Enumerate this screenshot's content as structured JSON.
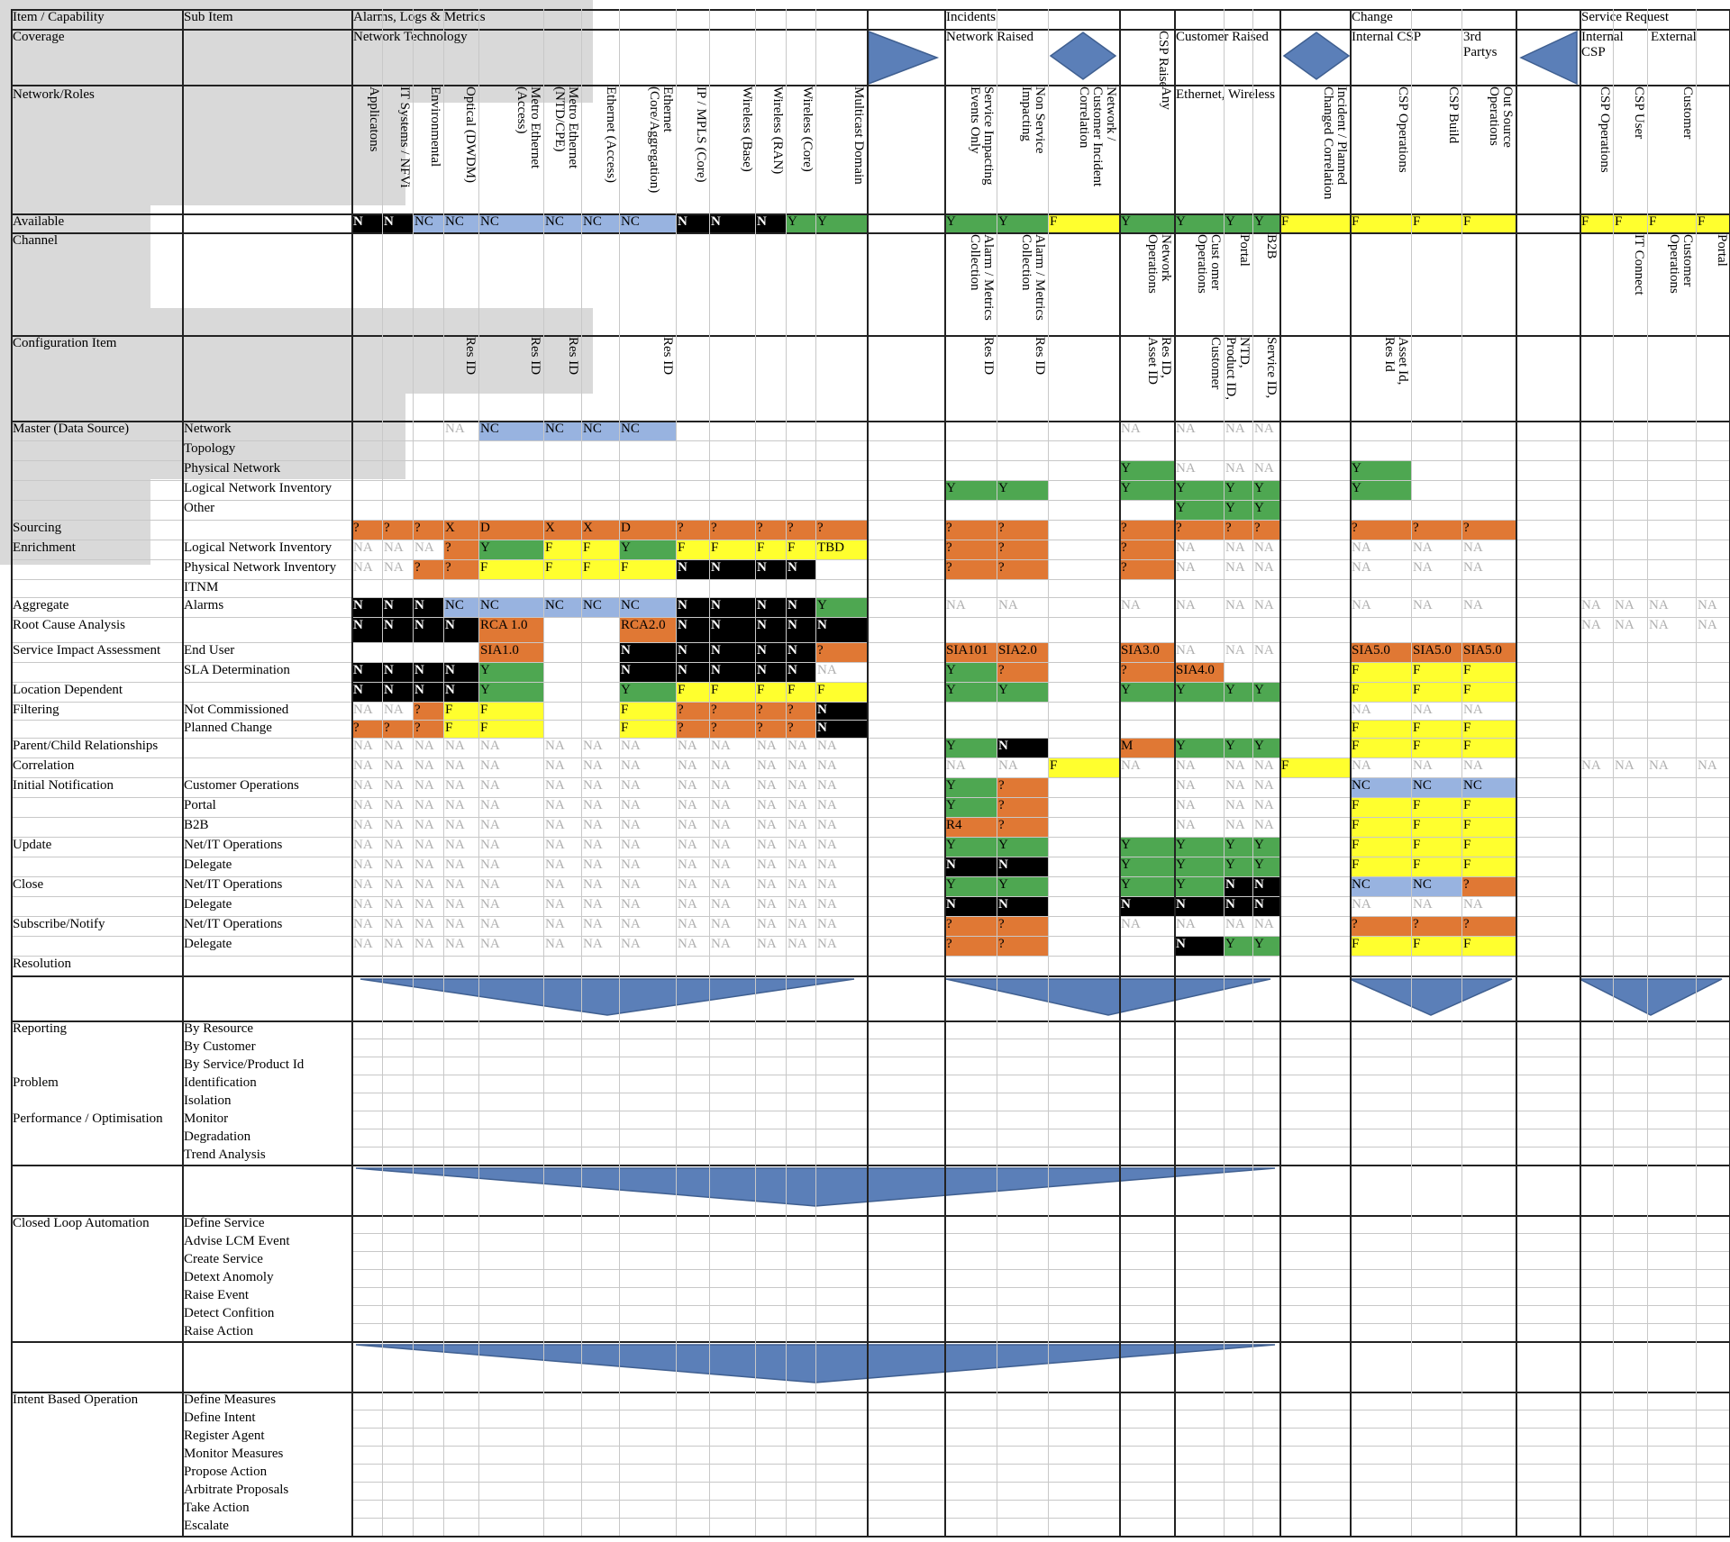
{
  "colors": {
    "Y": "#4ea751",
    "N": "#000000",
    "NC": "#98b3e0",
    "F": "#ffff2e",
    "O": "#e07834",
    "G": "#d9d9d9",
    "arrow": "#5b7fb8"
  },
  "header": {
    "item_capability": "Item / Capability",
    "sub_item": "Sub Item",
    "alarms": "Alarms, Logs & Metrics",
    "incidents": "Incidents",
    "change": "Change",
    "service_request": "Service Request",
    "coverage": "Coverage",
    "network_technology": "Network Technology",
    "network_raised": "Network Raised",
    "csp_raised": "CSP Raised",
    "customer_raised": "Customer Raised",
    "internal_csp": "Internal CSP",
    "third_partys": "3rd Partys",
    "sr_internal_csp": "Internal CSP",
    "external": "External",
    "network_roles": "Network/Roles",
    "ethernet_wireless": "Ethernet, Wireless"
  },
  "columns": [
    "Applicatons",
    "IT Systems / NFVi",
    "Environmental",
    "Optical (DWDM)",
    "Metro Ethernet\n(Access)",
    "Metro Ethernet\n(NTD/CPE)",
    "Ethernet (Access)",
    "Ethernet\n(Core/Aggregation)",
    "IP / MPLS (Core)",
    "Wireless (Base)",
    "Wireless (RAN)",
    "Wireless (Core)",
    "Multicast Domain",
    "",
    "Service Impacting\nEvents Only",
    "Non Service\nImpacting",
    "Network /\nCustomer Incident\nCorrelation",
    "Any",
    "",
    "",
    "",
    "Incident / Planned\nChanged Correlation",
    "CSP Operations",
    "CSP Build",
    "Out Source\nOperations",
    "",
    "CSP Operations",
    "CSP User",
    "Customer",
    ""
  ],
  "channel_labels": [
    "",
    "",
    "",
    "",
    "",
    "",
    "",
    "",
    "",
    "",
    "",
    "",
    "",
    "",
    "Alarm / Metrics\nCollection",
    "Alarm / Metrics\nCollection",
    "",
    "Network\nOperations",
    "Cust omer\nOperations",
    "Portal",
    "B2B",
    "",
    "",
    "",
    "",
    "",
    "",
    "IT Connect",
    "Customer\nOperations",
    "Portal"
  ],
  "ci_labels": [
    "",
    "",
    "",
    "Res ID",
    "Res ID",
    "Res ID",
    "",
    "Res ID",
    "",
    "",
    "",
    "",
    "",
    "",
    "Res ID",
    "Res ID",
    "",
    "Res ID,\nAsset ID",
    "Customer",
    "NTD,\nProduct ID,",
    "Service ID,",
    "",
    "Asset Id,\nRes Id",
    "",
    "",
    "",
    "",
    "",
    "",
    ""
  ],
  "rows": [
    {
      "item": "Available",
      "sub": "",
      "cells": [
        "N",
        "N",
        "NC",
        "NC",
        "NC",
        "NC",
        "NC",
        "NC",
        "N",
        "N",
        "N",
        "Y",
        "Y",
        "",
        "Y",
        "Y",
        "F",
        "Y",
        "Y",
        "Y",
        "Y",
        "F",
        "F",
        "F",
        "F",
        "",
        "F",
        "F",
        "F",
        "F"
      ]
    },
    {
      "item": "Master (Data Source)",
      "sub": "Network",
      "cells": [
        "",
        "",
        "",
        "NA",
        "NC",
        "NC",
        "NC",
        "NC",
        "",
        "",
        "",
        "",
        "",
        "",
        "",
        "",
        "",
        "NA",
        "NA",
        "NA",
        "NA",
        "",
        "",
        "",
        "",
        "",
        "",
        "",
        "",
        ""
      ]
    },
    {
      "item": "",
      "sub": "Topology",
      "cells": [
        "",
        "",
        "",
        "",
        "",
        "",
        "",
        "",
        "",
        "",
        "",
        "",
        "",
        "",
        "",
        "",
        "",
        "",
        "",
        "",
        "",
        "",
        "",
        "",
        "",
        "",
        "",
        "",
        "",
        ""
      ]
    },
    {
      "item": "",
      "sub": "Physical Network",
      "cells": [
        "",
        "",
        "",
        "",
        "",
        "",
        "",
        "",
        "",
        "",
        "",
        "",
        "",
        "",
        "",
        "",
        "",
        "Y",
        "NA",
        "NA",
        "NA",
        "",
        "Y",
        "",
        "",
        "",
        "",
        "",
        "",
        ""
      ]
    },
    {
      "item": "",
      "sub": "Logical Network Inventory",
      "cells": [
        "",
        "",
        "",
        "",
        "",
        "",
        "",
        "",
        "",
        "",
        "",
        "",
        "",
        "",
        "Y",
        "Y",
        "",
        "Y",
        "Y",
        "Y",
        "Y",
        "",
        "Y",
        "",
        "",
        "",
        "",
        "",
        "",
        ""
      ]
    },
    {
      "item": "",
      "sub": "Other",
      "cells": [
        "",
        "",
        "",
        "",
        "",
        "",
        "",
        "",
        "",
        "",
        "",
        "",
        "",
        "",
        "",
        "",
        "",
        "",
        "Y",
        "Y",
        "Y",
        "",
        "",
        "",
        "",
        "",
        "",
        "",
        "",
        ""
      ]
    },
    {
      "item": "Sourcing",
      "sub": "",
      "cells": [
        "?",
        "?",
        "?",
        "X",
        "D",
        "X",
        "X",
        "D",
        "?",
        "?",
        "?",
        "?",
        "?",
        "",
        "?",
        "?",
        "",
        "?",
        "?",
        "?",
        "?",
        "",
        "?",
        "?",
        "?",
        "",
        "",
        "",
        "",
        ""
      ]
    },
    {
      "item": "Enrichment",
      "sub": "Logical Network Inventory",
      "cells": [
        "NA",
        "NA",
        "NA",
        "?",
        "Y",
        "F",
        "F",
        "Y",
        "F",
        "F",
        "F",
        "F",
        "TBD",
        "",
        "?",
        "?",
        "",
        "?",
        "NA",
        "NA",
        "NA",
        "",
        "NA",
        "NA",
        "NA",
        "",
        "",
        "",
        "",
        ""
      ]
    },
    {
      "item": "",
      "sub": "Physical Network Inventory",
      "cells": [
        "NA",
        "NA",
        "?",
        "?",
        "F",
        "F",
        "F",
        "F",
        "N",
        "N",
        "N",
        "N",
        "",
        "",
        "?",
        "?",
        "",
        "?",
        "NA",
        "NA",
        "NA",
        "",
        "NA",
        "NA",
        "NA",
        "",
        "",
        "",
        "",
        ""
      ]
    },
    {
      "item": "",
      "sub": "ITNM",
      "cells": [
        "",
        "",
        "",
        "",
        "",
        "",
        "",
        "",
        "",
        "",
        "",
        "",
        "",
        "",
        "",
        "",
        "",
        "",
        "",
        "",
        "",
        "",
        "",
        "",
        "",
        "",
        "",
        "",
        "",
        ""
      ]
    },
    {
      "item": "Aggregate",
      "sub": "Alarms",
      "cells": [
        "N",
        "N",
        "N",
        "NC",
        "NC",
        "NC",
        "NC",
        "NC",
        "N",
        "N",
        "N",
        "N",
        "Y",
        "",
        "NA",
        "NA",
        "",
        "NA",
        "NA",
        "NA",
        "NA",
        "",
        "NA",
        "NA",
        "NA",
        "",
        "NA",
        "NA",
        "NA",
        "NA"
      ]
    },
    {
      "item": "Root Cause Analysis",
      "sub": "",
      "cells": [
        "N",
        "N",
        "N",
        "N",
        "RCA 1.0",
        "",
        "",
        "RCA2.0",
        "N",
        "N",
        "N",
        "N",
        "N",
        "",
        "",
        "",
        "",
        "",
        "",
        "",
        "",
        "",
        "",
        "",
        "",
        "",
        "NA",
        "NA",
        "NA",
        "NA"
      ]
    },
    {
      "item": "Service Impact Assessment",
      "sub": "End User",
      "cells": [
        "",
        "",
        "",
        "",
        "SIA1.0",
        "",
        "",
        "N",
        "N",
        "N",
        "N",
        "N",
        "?",
        "",
        "SIA101",
        "SIA2.0",
        "",
        "SIA3.0",
        "NA",
        "NA",
        "NA",
        "",
        "SIA5.0",
        "SIA5.0",
        "SIA5.0",
        "",
        "",
        "",
        "",
        ""
      ]
    },
    {
      "item": "",
      "sub": "SLA Determination",
      "cells": [
        "N",
        "N",
        "N",
        "N",
        "Y",
        "",
        "",
        "N",
        "N",
        "N",
        "N",
        "N",
        "NA",
        "",
        "Y",
        "?",
        "",
        "?",
        "SIA4.0",
        "",
        "",
        "",
        "F",
        "F",
        "F",
        "",
        "",
        "",
        "",
        ""
      ]
    },
    {
      "item": "Location Dependent",
      "sub": "",
      "cells": [
        "N",
        "N",
        "N",
        "N",
        "Y",
        "",
        "",
        "Y",
        "F",
        "F",
        "F",
        "F",
        "F",
        "",
        "Y",
        "Y",
        "",
        "Y",
        "Y",
        "Y",
        "Y",
        "",
        "F",
        "F",
        "F",
        "",
        "",
        "",
        "",
        ""
      ]
    },
    {
      "item": "Filtering",
      "sub": "Not Commissioned",
      "cells": [
        "NA",
        "NA",
        "?",
        "F",
        "F",
        "",
        "",
        "F",
        "?",
        "?",
        "?",
        "?",
        "N",
        "",
        "",
        "",
        "",
        "",
        "",
        "",
        "",
        "",
        "NA",
        "NA",
        "NA",
        "",
        "",
        "",
        "",
        ""
      ]
    },
    {
      "item": "",
      "sub": "Planned Change",
      "cells": [
        "?",
        "?",
        "?",
        "F",
        "F",
        "",
        "",
        "F",
        "?",
        "?",
        "?",
        "?",
        "N",
        "",
        "",
        "",
        "",
        "",
        "",
        "",
        "",
        "",
        "F",
        "F",
        "F",
        "",
        "",
        "",
        "",
        ""
      ]
    },
    {
      "item": "Parent/Child Relationships",
      "sub": "",
      "cells": [
        "NA",
        "NA",
        "NA",
        "NA",
        "NA",
        "NA",
        "NA",
        "NA",
        "NA",
        "NA",
        "NA",
        "NA",
        "NA",
        "",
        "Y",
        "N",
        "",
        "M",
        "Y",
        "Y",
        "Y",
        "",
        "F",
        "F",
        "F",
        "",
        "",
        "",
        "",
        ""
      ]
    },
    {
      "item": "Correlation",
      "sub": "",
      "cells": [
        "NA",
        "NA",
        "NA",
        "NA",
        "NA",
        "NA",
        "NA",
        "NA",
        "NA",
        "NA",
        "NA",
        "NA",
        "NA",
        "",
        "NA",
        "NA",
        "F",
        "NA",
        "NA",
        "NA",
        "NA",
        "F",
        "NA",
        "NA",
        "NA",
        "",
        "NA",
        "NA",
        "NA",
        "NA"
      ]
    },
    {
      "item": "Initial Notification",
      "sub": "Customer Operations",
      "cells": [
        "NA",
        "NA",
        "NA",
        "NA",
        "NA",
        "NA",
        "NA",
        "NA",
        "NA",
        "NA",
        "NA",
        "NA",
        "NA",
        "",
        "Y",
        "?",
        "",
        "",
        "NA",
        "NA",
        "NA",
        "",
        "NC",
        "NC",
        "NC",
        "",
        "",
        "",
        "",
        ""
      ]
    },
    {
      "item": "",
      "sub": "Portal",
      "cells": [
        "NA",
        "NA",
        "NA",
        "NA",
        "NA",
        "NA",
        "NA",
        "NA",
        "NA",
        "NA",
        "NA",
        "NA",
        "NA",
        "",
        "Y",
        "?",
        "",
        "",
        "NA",
        "NA",
        "NA",
        "",
        "F",
        "F",
        "F",
        "",
        "",
        "",
        "",
        ""
      ]
    },
    {
      "item": "",
      "sub": "B2B",
      "cells": [
        "NA",
        "NA",
        "NA",
        "NA",
        "NA",
        "NA",
        "NA",
        "NA",
        "NA",
        "NA",
        "NA",
        "NA",
        "NA",
        "",
        "R4",
        "?",
        "",
        "",
        "NA",
        "NA",
        "NA",
        "",
        "F",
        "F",
        "F",
        "",
        "",
        "",
        "",
        ""
      ]
    },
    {
      "item": "Update",
      "sub": "Net/IT Operations",
      "cells": [
        "NA",
        "NA",
        "NA",
        "NA",
        "NA",
        "NA",
        "NA",
        "NA",
        "NA",
        "NA",
        "NA",
        "NA",
        "NA",
        "",
        "Y",
        "Y",
        "",
        "Y",
        "Y",
        "Y",
        "Y",
        "",
        "F",
        "F",
        "F",
        "",
        "",
        "",
        "",
        ""
      ]
    },
    {
      "item": "",
      "sub": "Delegate",
      "cells": [
        "NA",
        "NA",
        "NA",
        "NA",
        "NA",
        "NA",
        "NA",
        "NA",
        "NA",
        "NA",
        "NA",
        "NA",
        "NA",
        "",
        "N",
        "N",
        "",
        "Y",
        "Y",
        "Y",
        "Y",
        "",
        "F",
        "F",
        "F",
        "",
        "",
        "",
        "",
        ""
      ]
    },
    {
      "item": "Close",
      "sub": "Net/IT Operations",
      "cells": [
        "NA",
        "NA",
        "NA",
        "NA",
        "NA",
        "NA",
        "NA",
        "NA",
        "NA",
        "NA",
        "NA",
        "NA",
        "NA",
        "",
        "Y",
        "Y",
        "",
        "Y",
        "Y",
        "N",
        "N",
        "",
        "NC",
        "NC",
        "?",
        "",
        "",
        "",
        "",
        ""
      ]
    },
    {
      "item": "",
      "sub": "Delegate",
      "cells": [
        "NA",
        "NA",
        "NA",
        "NA",
        "NA",
        "NA",
        "NA",
        "NA",
        "NA",
        "NA",
        "NA",
        "NA",
        "NA",
        "",
        "N",
        "N",
        "",
        "N",
        "N",
        "N",
        "N",
        "",
        "NA",
        "NA",
        "NA",
        "",
        "",
        "",
        "",
        ""
      ]
    },
    {
      "item": "Subscribe/Notify",
      "sub": "Net/IT Operations",
      "cells": [
        "NA",
        "NA",
        "NA",
        "NA",
        "NA",
        "NA",
        "NA",
        "NA",
        "NA",
        "NA",
        "NA",
        "NA",
        "NA",
        "",
        "?",
        "?",
        "",
        "NA",
        "NA",
        "NA",
        "NA",
        "",
        "?",
        "?",
        "?",
        "",
        "",
        "",
        "",
        ""
      ]
    },
    {
      "item": "",
      "sub": "Delegate",
      "cells": [
        "NA",
        "NA",
        "NA",
        "NA",
        "NA",
        "NA",
        "NA",
        "NA",
        "NA",
        "NA",
        "NA",
        "NA",
        "NA",
        "",
        "?",
        "?",
        "",
        "",
        "N",
        "Y",
        "Y",
        "",
        "F",
        "F",
        "F",
        "",
        "",
        "",
        "",
        ""
      ]
    },
    {
      "item": "Resolution",
      "sub": "",
      "cells": [
        "",
        "",
        "",
        "",
        "",
        "",
        "",
        "",
        "",
        "",
        "",
        "",
        "",
        "",
        "",
        "",
        "",
        "",
        "",
        "",
        "",
        "",
        "",
        "",
        "",
        "",
        "",
        "",
        "",
        ""
      ]
    }
  ],
  "lower_sections": [
    {
      "item": "Reporting",
      "subs": [
        "By Resource",
        "By Customer",
        "By Service/Product Id"
      ]
    },
    {
      "item": "Problem",
      "subs": [
        "Identification",
        "Isolation"
      ]
    },
    {
      "item": "Performance / Optimisation",
      "subs": [
        "Monitor",
        "Degradation",
        "Trend Analysis"
      ]
    },
    {
      "item": "Closed Loop Automation",
      "subs": [
        "Define Service",
        "Advise LCM Event",
        "Create Service",
        "Detext Anomoly",
        "Raise Event",
        "Detect Confition",
        "Raise Action"
      ]
    },
    {
      "item": "Intent Based Operation",
      "subs": [
        "Define Measures",
        "Define Intent",
        "Register Agent",
        "Monitor Measures",
        "Propose Action",
        "Arbitrate Proposals",
        "Take Action",
        "Escalate"
      ]
    }
  ]
}
